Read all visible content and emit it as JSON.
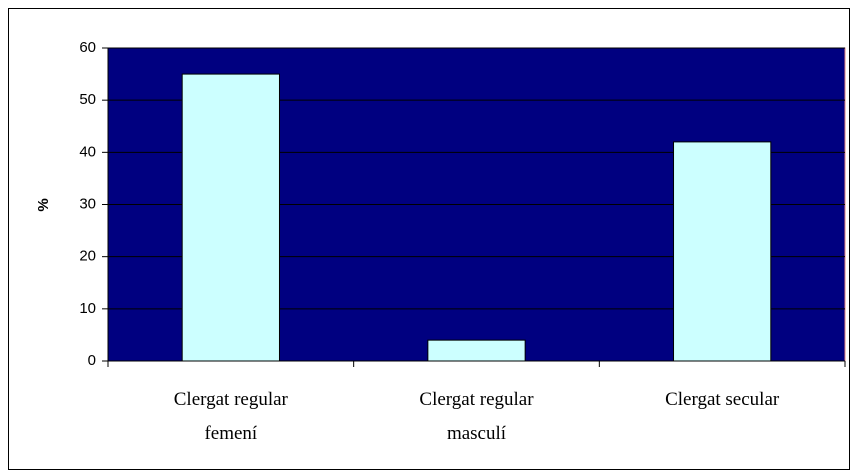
{
  "chart_data": {
    "type": "bar",
    "y_label": "%",
    "categories": [
      "Clergat regular femení",
      "Clergat regular masculí",
      "Clergat secular"
    ],
    "values": [
      55,
      4,
      42
    ],
    "color": "#ccffff",
    "background": "#000080",
    "ylim": [
      0,
      60
    ],
    "yticks": [
      0,
      10,
      20,
      30,
      40,
      50,
      60
    ],
    "grid": true
  }
}
